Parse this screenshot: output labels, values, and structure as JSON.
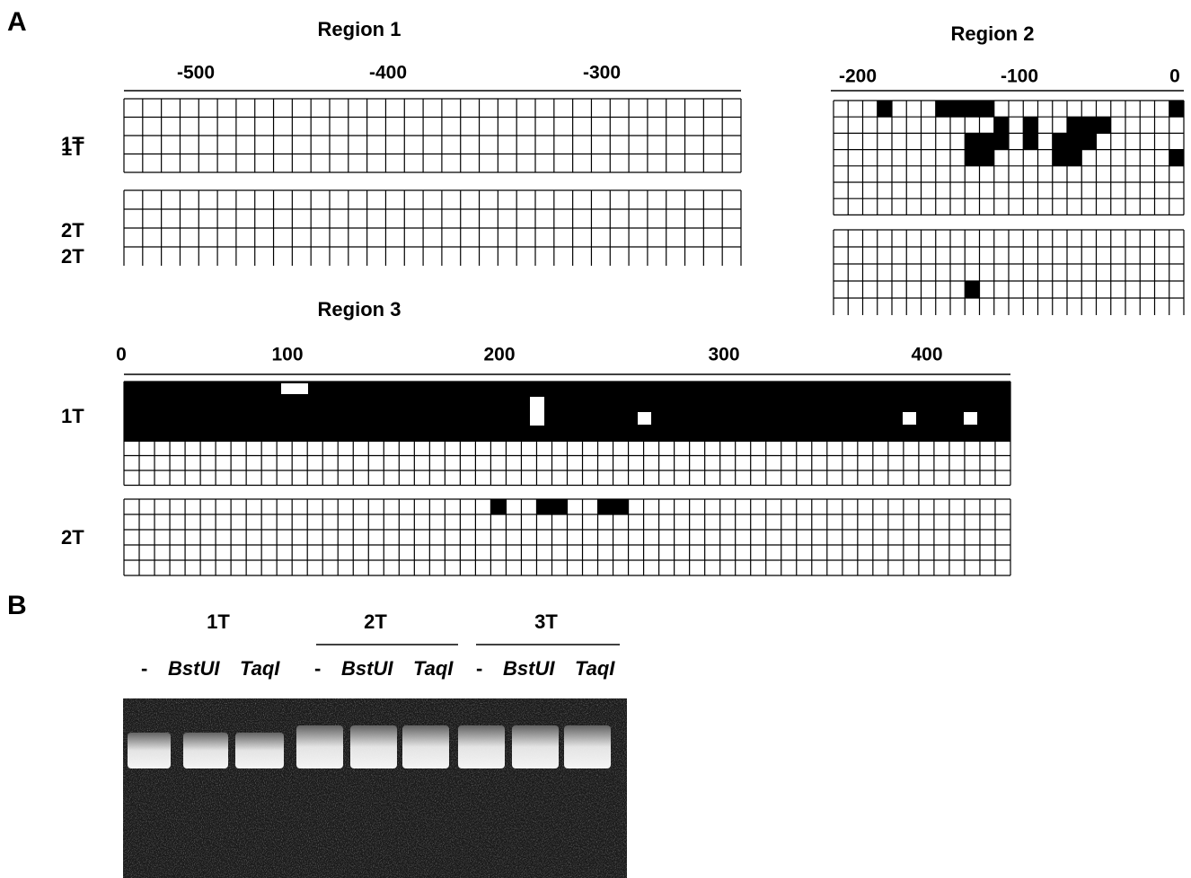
{
  "panel_a": {
    "label": "A",
    "region1": {
      "title": "Region 1",
      "ticks": [
        "-500",
        "-400",
        "-300"
      ],
      "rows": [
        "1T",
        "2T"
      ]
    },
    "region2": {
      "title": "Region 2",
      "ticks": [
        "-200",
        "-100",
        "0"
      ],
      "rows": [
        "1T",
        "2T"
      ]
    },
    "region3": {
      "title": "Region 3",
      "ticks": [
        "0",
        "100",
        "200",
        "300",
        "400"
      ],
      "rows": [
        "1T",
        "2T"
      ]
    }
  },
  "panel_b": {
    "label": "B",
    "groups": [
      "1T",
      "2T",
      "3T"
    ],
    "lanes": [
      [
        "-",
        "BstUI",
        "TaqI"
      ],
      [
        "-",
        "BstUI",
        "TaqI"
      ],
      [
        "-",
        "BstUI",
        "TaqI"
      ]
    ]
  }
}
